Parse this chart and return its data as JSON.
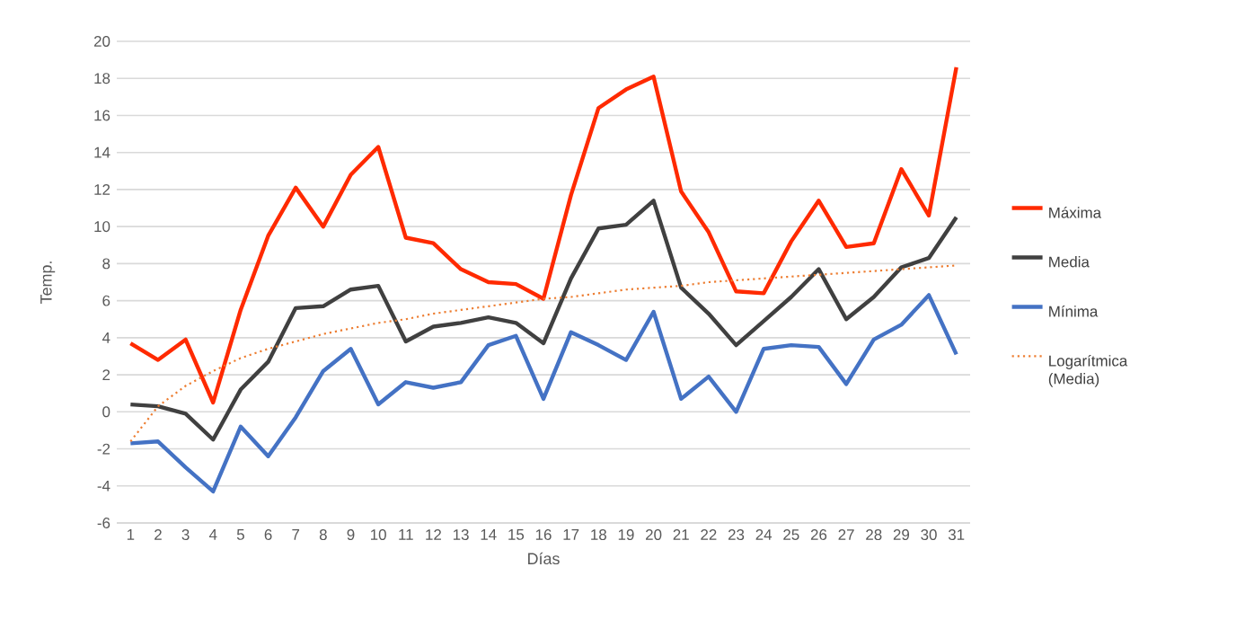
{
  "chart_data": {
    "type": "line",
    "xlabel": "Días",
    "ylabel": "Temp.",
    "categories": [
      "1",
      "2",
      "3",
      "4",
      "5",
      "6",
      "7",
      "8",
      "9",
      "10",
      "11",
      "12",
      "13",
      "14",
      "15",
      "16",
      "17",
      "18",
      "19",
      "20",
      "21",
      "22",
      "23",
      "24",
      "25",
      "26",
      "27",
      "28",
      "29",
      "30",
      "31"
    ],
    "ylim": [
      -6,
      20
    ],
    "yticks": [
      -6,
      -4,
      -2,
      0,
      2,
      4,
      6,
      8,
      10,
      12,
      14,
      16,
      18,
      20
    ],
    "grid": "y",
    "legend": "right",
    "line_style": "solid",
    "series": [
      {
        "name": "Máxima",
        "color": "#ff2a00",
        "values": [
          3.7,
          2.8,
          3.9,
          0.5,
          5.5,
          9.5,
          12.1,
          10.0,
          12.8,
          14.3,
          9.4,
          9.1,
          7.7,
          7.0,
          6.9,
          6.1,
          11.7,
          16.4,
          17.4,
          18.1,
          11.9,
          9.7,
          6.5,
          6.4,
          9.2,
          11.4,
          8.9,
          9.1,
          13.1,
          10.6,
          18.6
        ]
      },
      {
        "name": "Media",
        "color": "#404040",
        "values": [
          0.4,
          0.3,
          -0.1,
          -1.5,
          1.2,
          2.7,
          5.6,
          5.7,
          6.6,
          6.8,
          3.8,
          4.6,
          4.8,
          5.1,
          4.8,
          3.7,
          7.2,
          9.9,
          10.1,
          11.4,
          6.7,
          5.3,
          3.6,
          4.9,
          6.2,
          7.7,
          5.0,
          6.2,
          7.8,
          8.3,
          10.5
        ]
      },
      {
        "name": "Mínima",
        "color": "#4472c4",
        "values": [
          -1.7,
          -1.6,
          -3.0,
          -4.3,
          -0.8,
          -2.4,
          -0.3,
          2.2,
          3.4,
          0.4,
          1.6,
          1.3,
          1.6,
          3.6,
          4.1,
          0.7,
          4.3,
          3.6,
          2.8,
          5.4,
          0.7,
          1.9,
          0.0,
          3.4,
          3.6,
          3.5,
          1.5,
          3.9,
          4.7,
          6.3,
          3.1
        ]
      },
      {
        "name": "Logarítmica (Media)",
        "type": "line",
        "line_style": "dotted",
        "color": "#ed7d31",
        "values": [
          -1.6,
          0.3,
          1.4,
          2.2,
          2.9,
          3.4,
          3.8,
          4.2,
          4.5,
          4.8,
          5.0,
          5.3,
          5.5,
          5.7,
          5.9,
          6.1,
          6.2,
          6.4,
          6.6,
          6.7,
          6.8,
          7.0,
          7.1,
          7.2,
          7.3,
          7.4,
          7.5,
          7.6,
          7.7,
          7.8,
          7.9
        ]
      }
    ]
  }
}
